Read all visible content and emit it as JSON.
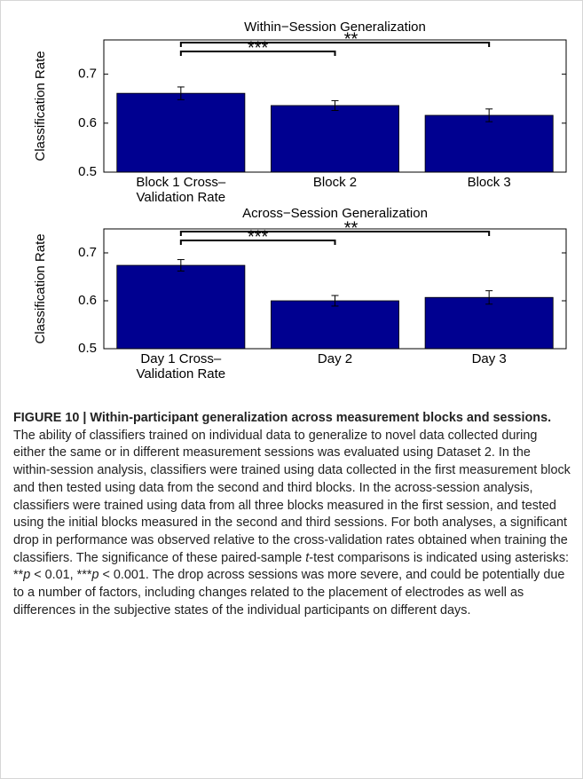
{
  "chart_data": [
    {
      "type": "bar",
      "title": "Within−Session Generalization",
      "y_label": "Classification Rate",
      "categories": [
        "Block 1 Cross–\nValidation Rate",
        "Block 2",
        "Block 3"
      ],
      "values": [
        0.661,
        0.636,
        0.616
      ],
      "errors": [
        0.013,
        0.01,
        0.013
      ],
      "color": "#000090",
      "ylim": [
        0.5,
        0.77
      ],
      "yticks": [
        0.5,
        0.6,
        0.7
      ],
      "annotations": [
        "***",
        "**"
      ]
    },
    {
      "type": "bar",
      "title": "Across−Session Generalization",
      "y_label": "Classification Rate",
      "categories": [
        "Day 1 Cross–\nValidation Rate",
        "Day 2",
        "Day 3"
      ],
      "values": [
        0.674,
        0.6,
        0.607
      ],
      "errors": [
        0.012,
        0.011,
        0.014
      ],
      "color": "#000090",
      "ylim": [
        0.5,
        0.75
      ],
      "yticks": [
        0.5,
        0.6,
        0.7
      ],
      "annotations": [
        "***",
        "**"
      ]
    }
  ],
  "caption": {
    "label": "FIGURE 10 | Within-participant generalization across measurement blocks and sessions.",
    "text": [
      "The ability of classifiers trained on individual data to generalize to novel data collected during either the same or in different measurement sessions was evaluated using Dataset 2. In the within-session analysis, classifiers were trained using data collected in the first measurement block and then tested using data from the second and third blocks. In the across-session analysis, classifiers were trained using data from all three blocks measured in the first session, and tested using the initial blocks measured in the second and third sessions. For both analyses, a significant drop in performance was observed relative to the cross-validation rates obtained when training the classifiers. The significance of these paired-sample ",
      "t",
      "-test comparisons is indicated using asterisks: **",
      "p",
      " < 0.01, ***",
      "p",
      " < 0.001. The drop across sessions was more severe, and could be potentially due to a number of factors, including changes related to the placement of electrodes as well as differences in the subjective states of the individual participants on different days."
    ]
  }
}
